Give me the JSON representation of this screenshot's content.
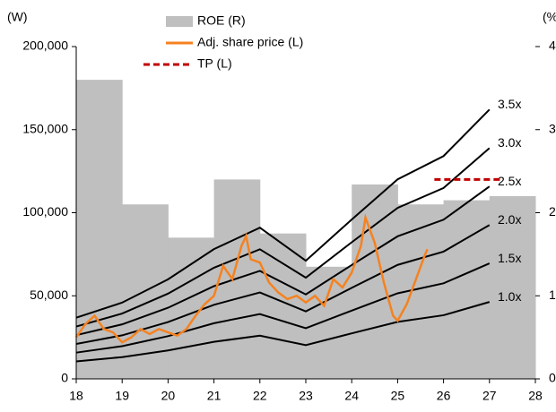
{
  "chart_data": {
    "type": "combo",
    "y_label": "(W)",
    "y2_label": "(%)",
    "xlim": [
      18,
      28
    ],
    "xticks": [
      18,
      19,
      20,
      21,
      22,
      23,
      24,
      25,
      26,
      27,
      28
    ],
    "ylim": [
      0,
      200000
    ],
    "yticks": [
      0,
      {
        "value": 50000,
        "label": "50,000"
      },
      {
        "value": 100000,
        "label": "100,000"
      },
      {
        "value": 150000,
        "label": "150,000"
      },
      {
        "value": 200000,
        "label": "200,000"
      }
    ],
    "y2lim": [
      0,
      4
    ],
    "y2ticks": [
      0,
      1,
      2,
      3,
      4
    ],
    "series": [
      {
        "name": "ROE (R)",
        "type": "bar",
        "axis": "y2",
        "color": "#bfbfbf",
        "bins": [
          18,
          19,
          20,
          21,
          22,
          23,
          24,
          25,
          26,
          27,
          28
        ],
        "values": [
          3.6,
          2.1,
          1.7,
          2.4,
          1.75,
          1.35,
          2.34,
          2.1,
          2.15,
          2.2
        ]
      },
      {
        "name": "Adj. share price (L)",
        "type": "line",
        "color": "#f58220",
        "x": [
          18.0,
          18.2,
          18.4,
          18.6,
          18.8,
          19.0,
          19.2,
          19.4,
          19.6,
          19.8,
          20.0,
          20.2,
          20.4,
          20.6,
          20.8,
          21.0,
          21.2,
          21.4,
          21.6,
          21.7,
          21.8,
          22.0,
          22.2,
          22.4,
          22.6,
          22.8,
          23.0,
          23.2,
          23.4,
          23.6,
          23.8,
          24.0,
          24.2,
          24.3,
          24.5,
          24.7,
          24.9,
          25.0,
          25.2,
          25.4,
          25.6,
          25.65
        ],
        "values": [
          25000,
          33000,
          38000,
          30000,
          28000,
          22000,
          25000,
          30000,
          27000,
          30000,
          28000,
          26000,
          30000,
          38000,
          45000,
          50000,
          68000,
          60000,
          80000,
          86000,
          72000,
          70000,
          58000,
          52000,
          48000,
          50000,
          46000,
          50000,
          44000,
          60000,
          55000,
          64000,
          80000,
          97000,
          82000,
          58000,
          38000,
          35000,
          45000,
          60000,
          75000,
          78000
        ]
      },
      {
        "name": "TP (L)",
        "type": "dashed",
        "color": "#c00000",
        "x": [
          25.8,
          27.3
        ],
        "values": [
          120000,
          120000
        ]
      }
    ],
    "band_x": [
      18,
      19,
      20,
      21,
      22,
      23,
      24,
      25,
      26,
      27
    ],
    "band_color": "#000000",
    "band_label_color": "#c00000",
    "bands": [
      {
        "name": "3.5x",
        "values": [
          36800,
          45900,
          59900,
          78100,
          91000,
          71100,
          95900,
          120100,
          134100,
          162100
        ]
      },
      {
        "name": "3.0x",
        "values": [
          31500,
          39300,
          51300,
          66900,
          78000,
          60900,
          82200,
          102900,
          114900,
          138900
        ]
      },
      {
        "name": "2.5x",
        "values": [
          26300,
          32800,
          42800,
          55800,
          65000,
          50800,
          68500,
          85800,
          95800,
          115800
        ]
      },
      {
        "name": "2.0x",
        "values": [
          21000,
          26200,
          34200,
          44600,
          52000,
          40600,
          54800,
          68600,
          76600,
          92600
        ]
      },
      {
        "name": "1.5x",
        "values": [
          15800,
          19700,
          25700,
          33500,
          39000,
          30500,
          41100,
          51500,
          57500,
          69500
        ]
      },
      {
        "name": "1.0x",
        "values": [
          10500,
          13100,
          17100,
          22300,
          26000,
          20300,
          27400,
          34300,
          38300,
          46300
        ]
      }
    ]
  }
}
